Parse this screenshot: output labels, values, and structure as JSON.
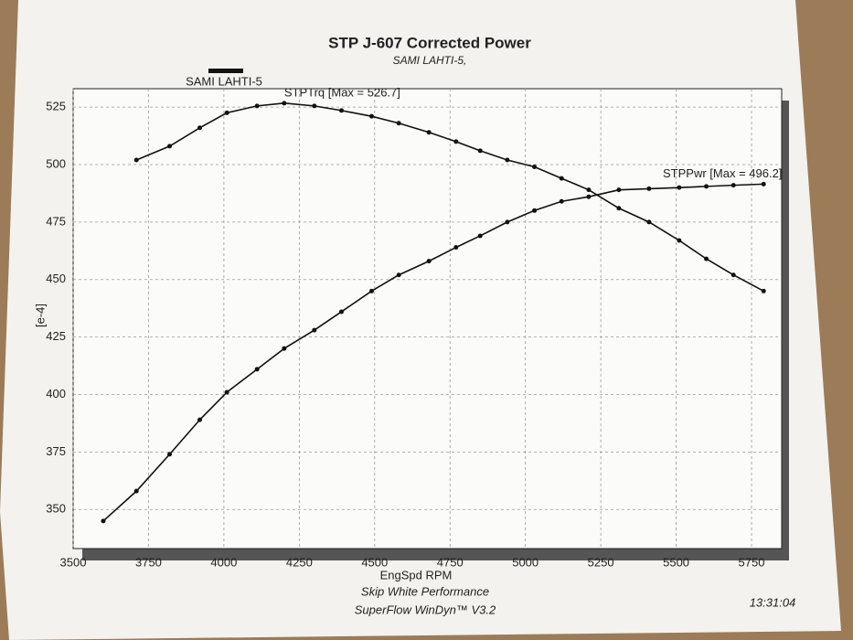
{
  "chart_data": {
    "type": "line",
    "title": "STP J-607 Corrected Power",
    "subtitle": "SAMI LAHTI-5,",
    "legend_label": "SAMI LAHTI-5",
    "xlabel": "EngSpd RPM",
    "ylabel": "[e-4]",
    "footer": [
      "Skip White Performance",
      "SuperFlow WinDyn™ V3.2"
    ],
    "timestamp": "13:31:04",
    "x": [
      3600,
      3710,
      3820,
      3920,
      4010,
      4110,
      4200,
      4300,
      4390,
      4490,
      4580,
      4680,
      4770,
      4850,
      4940,
      5030,
      5120,
      5210,
      5310,
      5410,
      5510,
      5600,
      5690,
      5790
    ],
    "series": [
      {
        "name": "STPTrq [Max = 526.7]",
        "color": "#111111",
        "values": [
          null,
          502,
          508,
          516,
          522.5,
          525.5,
          526.7,
          525.5,
          523.5,
          521,
          518,
          514,
          510,
          506,
          502,
          499,
          494,
          489,
          481,
          475,
          467,
          459,
          452,
          445
        ]
      },
      {
        "name": "STPPwr [Max = 496.2]",
        "color": "#111111",
        "values": [
          345,
          358,
          374,
          389,
          401,
          411,
          420,
          428,
          436,
          445,
          452,
          458,
          464,
          469,
          475,
          480,
          484,
          486,
          489,
          489.5,
          490,
          490.5,
          491,
          491.5
        ]
      }
    ],
    "xlim": [
      3500,
      5850
    ],
    "ylim": [
      333,
      533
    ],
    "xticks": [
      3500,
      3750,
      4000,
      4250,
      4500,
      4750,
      5000,
      5250,
      5500,
      5750
    ],
    "yticks": [
      350,
      375,
      400,
      425,
      450,
      475,
      500,
      525
    ],
    "grid": true
  }
}
